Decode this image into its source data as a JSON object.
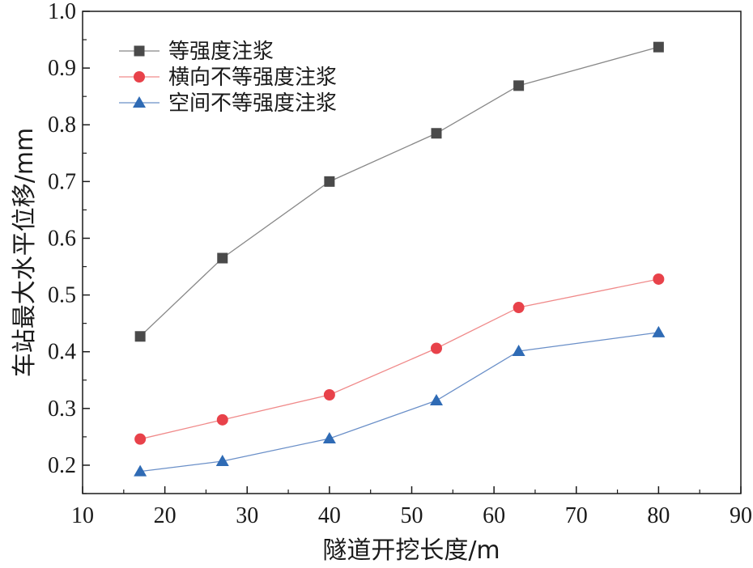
{
  "chart_data": {
    "type": "line",
    "xlabel": "隧道开挖长度/m",
    "ylabel": "车站最大水平位移/mm",
    "xlim": [
      10,
      90
    ],
    "ylim": [
      0.15,
      1.0
    ],
    "x_ticks": [
      "10",
      "20",
      "30",
      "40",
      "50",
      "60",
      "70",
      "80",
      "90"
    ],
    "y_ticks": [
      "0.2",
      "0.3",
      "0.4",
      "0.5",
      "0.6",
      "0.7",
      "0.8",
      "0.9",
      "1.0"
    ],
    "grid": false,
    "legend_position": "top-left",
    "x": [
      17,
      27,
      40,
      53,
      63,
      80
    ],
    "series": [
      {
        "name": "等强度注浆",
        "marker": "square",
        "line_color": "#888888",
        "marker_color": "#4a4a4a",
        "values": [
          0.427,
          0.565,
          0.7,
          0.785,
          0.869,
          0.937
        ]
      },
      {
        "name": "横向不等强度注浆",
        "marker": "circle",
        "line_color": "#f08a8a",
        "marker_color": "#e8424a",
        "values": [
          0.246,
          0.28,
          0.324,
          0.406,
          0.478,
          0.528
        ]
      },
      {
        "name": "空间不等强度注浆",
        "marker": "triangle",
        "line_color": "#6a8fc8",
        "marker_color": "#2f6bb5",
        "values": [
          0.189,
          0.207,
          0.247,
          0.314,
          0.401,
          0.434
        ]
      }
    ]
  }
}
